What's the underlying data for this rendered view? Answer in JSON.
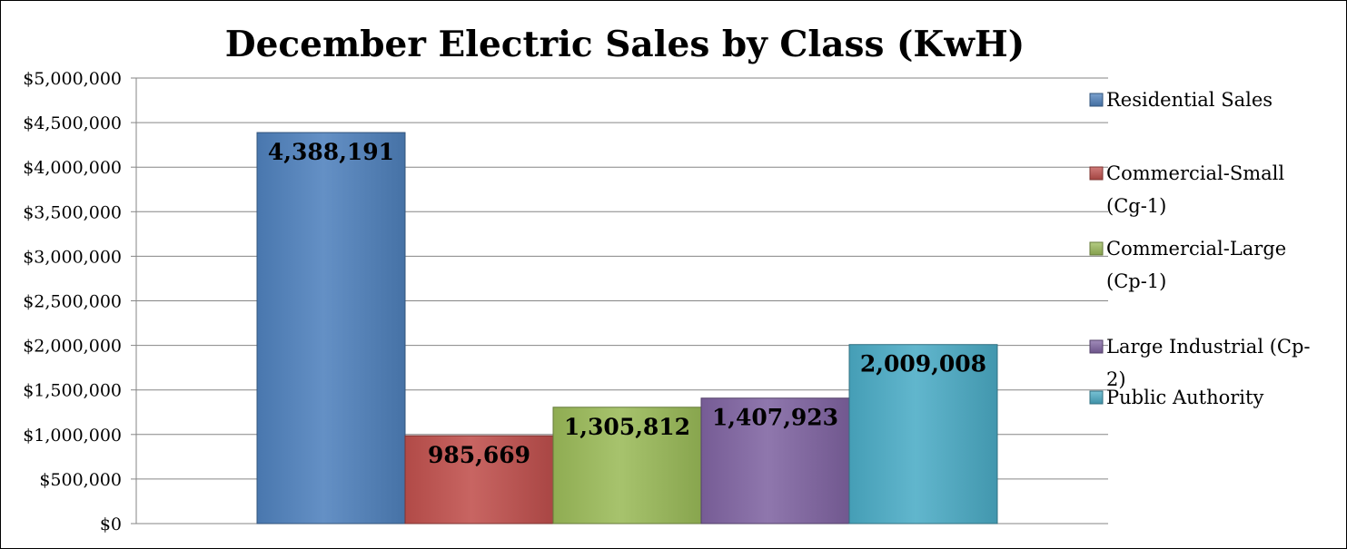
{
  "chart_data": {
    "type": "bar",
    "title": "December Electric Sales by Class (KwH)",
    "xlabel": "",
    "ylabel": "",
    "ylim": [
      0,
      5000000
    ],
    "yticks": [
      "$0",
      "$500,000",
      "$1,000,000",
      "$1,500,000",
      "$2,000,000",
      "$2,500,000",
      "$3,000,000",
      "$3,500,000",
      "$4,000,000",
      "$4,500,000",
      "$5,000,000"
    ],
    "grid": true,
    "legend_position": "right",
    "series": [
      {
        "name": "Residential Sales",
        "legend_lines": [
          "Residential Sales"
        ],
        "value": 4388191,
        "label": "4,388,191",
        "color": "#4F81BD"
      },
      {
        "name": "Commercial-Small (Cg-1)",
        "legend_lines": [
          "Commercial-Small",
          "(Cg-1)"
        ],
        "value": 985669,
        "label": "985,669",
        "color": "#C0504D"
      },
      {
        "name": "Commercial-Large (Cp-1)",
        "legend_lines": [
          "Commercial-Large",
          "(Cp-1)"
        ],
        "value": 1305812,
        "label": "1,305,812",
        "color": "#9BBB59"
      },
      {
        "name": "Large Industrial (Cp-2)",
        "legend_lines": [
          "Large Industrial (Cp-",
          "2)"
        ],
        "value": 1407923,
        "label": "1,407,923",
        "color": "#8064A2"
      },
      {
        "name": "Public Authority",
        "legend_lines": [
          "Public Authority"
        ],
        "value": 2009008,
        "label": "2,009,008",
        "color": "#4BACC6"
      }
    ]
  }
}
